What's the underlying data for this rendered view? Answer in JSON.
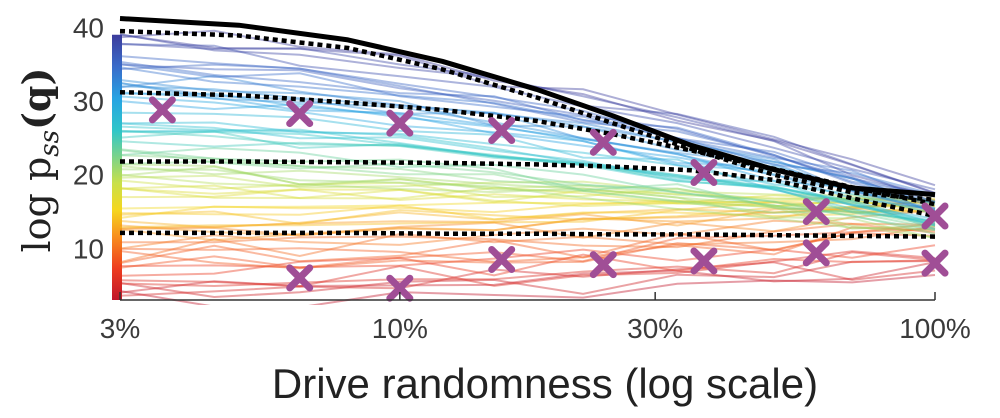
{
  "chart_data": {
    "type": "line",
    "title": "",
    "xlabel": "Drive randomness (log scale)",
    "ylabel": "log p_ss(q)",
    "ylabel_parts": {
      "main": "log p",
      "sub": "ss",
      "arg": "(q)"
    },
    "x_scale": "log",
    "xlim": [
      0.03,
      1.0
    ],
    "ylim": [
      3,
      41
    ],
    "x_ticks": [
      0.03,
      0.1,
      0.3,
      1.0
    ],
    "x_tick_labels": [
      "3%",
      "10%",
      "30%",
      "100%"
    ],
    "y_ticks": [
      10,
      20,
      30,
      40
    ],
    "y_tick_labels": [
      "10",
      "20",
      "30",
      "40"
    ],
    "colorbar": {
      "colormap": "jet-like",
      "range": [
        3,
        39
      ]
    },
    "series": [
      {
        "style": "solid-black",
        "color": "#000000",
        "x": [
          0.03,
          0.05,
          0.08,
          0.12,
          0.18,
          0.25,
          0.35,
          0.5,
          0.7,
          1.0
        ],
        "y": [
          41.2,
          40.3,
          38.3,
          35.4,
          31.6,
          28.0,
          24.0,
          20.7,
          18.2,
          17.3
        ]
      },
      {
        "style": "dotted-black",
        "color": "#000000",
        "x": [
          0.03,
          0.05,
          0.08,
          0.12,
          0.18,
          0.25,
          0.35,
          0.5,
          0.7,
          1.0
        ],
        "y": [
          39.5,
          38.9,
          37.2,
          34.3,
          30.5,
          27.0,
          23.5,
          20.0,
          17.6,
          16.6
        ]
      },
      {
        "style": "dotted-black",
        "color": "#000000",
        "x": [
          0.03,
          0.05,
          0.08,
          0.12,
          0.18,
          0.25,
          0.35,
          0.5,
          0.7,
          1.0
        ],
        "y": [
          31.2,
          30.8,
          29.8,
          28.8,
          27.3,
          25.5,
          23.3,
          20.8,
          18.3,
          16.0
        ]
      },
      {
        "style": "dotted-black",
        "color": "#000000",
        "x": [
          0.03,
          0.05,
          0.08,
          0.12,
          0.18,
          0.25,
          0.35,
          0.5,
          0.7,
          1.0
        ],
        "y": [
          21.8,
          21.8,
          21.7,
          21.6,
          21.4,
          21.1,
          20.6,
          19.3,
          16.8,
          14.4
        ]
      },
      {
        "style": "dotted-black",
        "color": "#000000",
        "x": [
          0.03,
          0.05,
          0.08,
          0.12,
          0.18,
          0.25,
          0.35,
          0.5,
          0.7,
          1.0
        ],
        "y": [
          12.1,
          12.1,
          12.1,
          12.0,
          12.0,
          11.9,
          11.9,
          11.8,
          11.7,
          11.6
        ]
      },
      {
        "style": "markers-x",
        "color": "#a04e96",
        "x": [
          0.036,
          0.065,
          0.1,
          0.155,
          0.24,
          0.37,
          0.6,
          1.0
        ],
        "y": [
          28.8,
          28.3,
          27.0,
          26.0,
          24.4,
          20.3,
          15.0,
          14.4
        ]
      },
      {
        "style": "markers-x",
        "color": "#a04e96",
        "x": [
          0.065,
          0.1,
          0.155,
          0.24,
          0.37,
          0.6,
          1.0
        ],
        "y": [
          6.0,
          4.6,
          8.5,
          7.8,
          8.3,
          9.4,
          8.0
        ]
      }
    ]
  }
}
